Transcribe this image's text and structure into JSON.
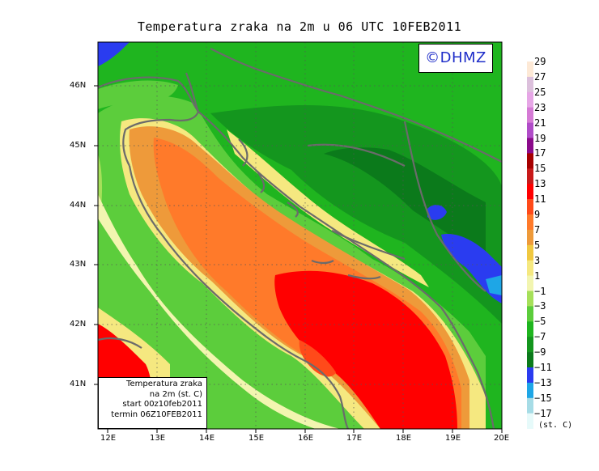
{
  "title": "Temperatura zraka na 2m u 06 UTC 10FEB2011",
  "logo": "©DHMZ",
  "info_box": [
    "Temperatura zraka",
    "na 2m (st. C)",
    "start 00z10feb2011",
    "termin 06Z10FEB2011"
  ],
  "lat_ticks": [
    "46N",
    "45N",
    "44N",
    "43N",
    "42N",
    "41N"
  ],
  "lon_ticks": [
    "12E",
    "13E",
    "14E",
    "15E",
    "16E",
    "17E",
    "18E",
    "19E",
    "20E"
  ],
  "legend": {
    "unit": "(st. C)",
    "labels": [
      "29",
      "27",
      "25",
      "23",
      "21",
      "19",
      "17",
      "15",
      "13",
      "11",
      "9",
      "7",
      "5",
      "3",
      "1",
      "−1",
      "−3",
      "−5",
      "−7",
      "−9",
      "−11",
      "−13",
      "−15",
      "−17"
    ],
    "colors": [
      "#fde9d6",
      "#dcc0dc",
      "#e6a6e6",
      "#d57ad5",
      "#b04cc8",
      "#8b0b8b",
      "#a60000",
      "#c81a1a",
      "#ff0000",
      "#ff4a1a",
      "#ff7a2a",
      "#ee9a3a",
      "#f0c840",
      "#f5e880",
      "#f2f5b0",
      "#a6e05a",
      "#5ccd3c",
      "#1fb51f",
      "#14961e",
      "#0b7a1b",
      "#2a3cf0",
      "#1ea6e6",
      "#a6dce6",
      "#e6fafa"
    ]
  },
  "colors": {
    "coastline": "#6b6b6b",
    "sea_warm": "#ff7a2a"
  }
}
